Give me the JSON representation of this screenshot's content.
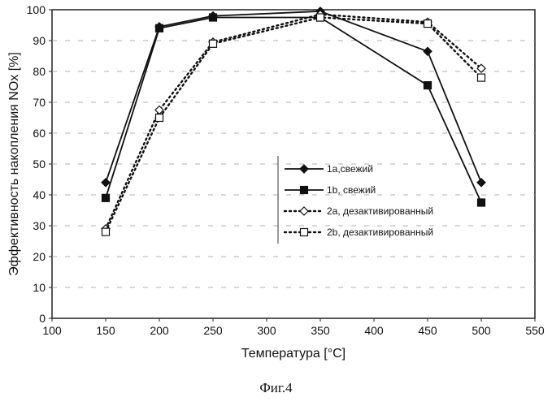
{
  "chart_data": {
    "type": "line",
    "xlabel": "Температура [°C]",
    "ylabel": "Эффективность накопления NOx [%]",
    "xlim": [
      100,
      550
    ],
    "ylim": [
      0,
      100
    ],
    "xticks": [
      100,
      150,
      200,
      250,
      300,
      350,
      400,
      450,
      500,
      550
    ],
    "yticks": [
      0,
      10,
      20,
      30,
      40,
      50,
      60,
      70,
      80,
      90,
      100
    ],
    "x": [
      150,
      200,
      250,
      350,
      450,
      500
    ],
    "legend_position": "center-right",
    "series": [
      {
        "name": "1a,свежий",
        "values": [
          44,
          94.5,
          98,
          99.5,
          86.5,
          44
        ],
        "marker": "diamond-filled",
        "line": "solid",
        "color": "#111111"
      },
      {
        "name": "1b, свежий",
        "values": [
          39,
          94,
          97.5,
          97.5,
          75.5,
          37.5
        ],
        "marker": "square-filled",
        "line": "solid",
        "color": "#111111"
      },
      {
        "name": "2a, дезактивированный",
        "values": [
          29,
          67.5,
          89.5,
          98.5,
          96,
          81
        ],
        "marker": "diamond-open",
        "line": "dotted",
        "color": "#111111"
      },
      {
        "name": "2b, дезактивированный",
        "values": [
          28,
          65,
          89,
          97.5,
          95.5,
          78
        ],
        "marker": "square-open",
        "line": "dotted",
        "color": "#111111"
      }
    ]
  },
  "caption": "Фиг.4"
}
